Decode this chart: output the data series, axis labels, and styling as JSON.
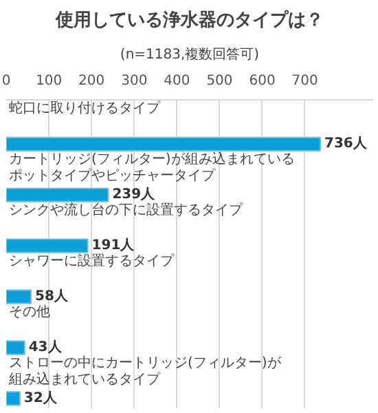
{
  "chart_data": {
    "type": "bar",
    "orientation": "horizontal",
    "title": "使用している浄水器のタイプは？",
    "subtitle": "(n=1183,複数回答可)",
    "categories": [
      "蛇口に取り付けるタイプ",
      "カートリッジ(フィルター)が組み込まれているポットタイプやピッチャータイプ",
      "シンクや流し台の下に設置するタイプ",
      "シャワーに設置するタイプ",
      "その他",
      "ストローの中にカートリッジ(フィルター)が組み込まれているタイプ"
    ],
    "values": [
      736,
      239,
      191,
      58,
      43,
      32
    ],
    "value_labels": [
      "736人",
      "239人",
      "191人",
      "58人",
      "43人",
      "32人"
    ],
    "color": "#0c9fd8",
    "xlim": [
      0,
      860
    ],
    "xticks": [
      0,
      100,
      200,
      300,
      400,
      500,
      600,
      700
    ],
    "grid": "x"
  }
}
